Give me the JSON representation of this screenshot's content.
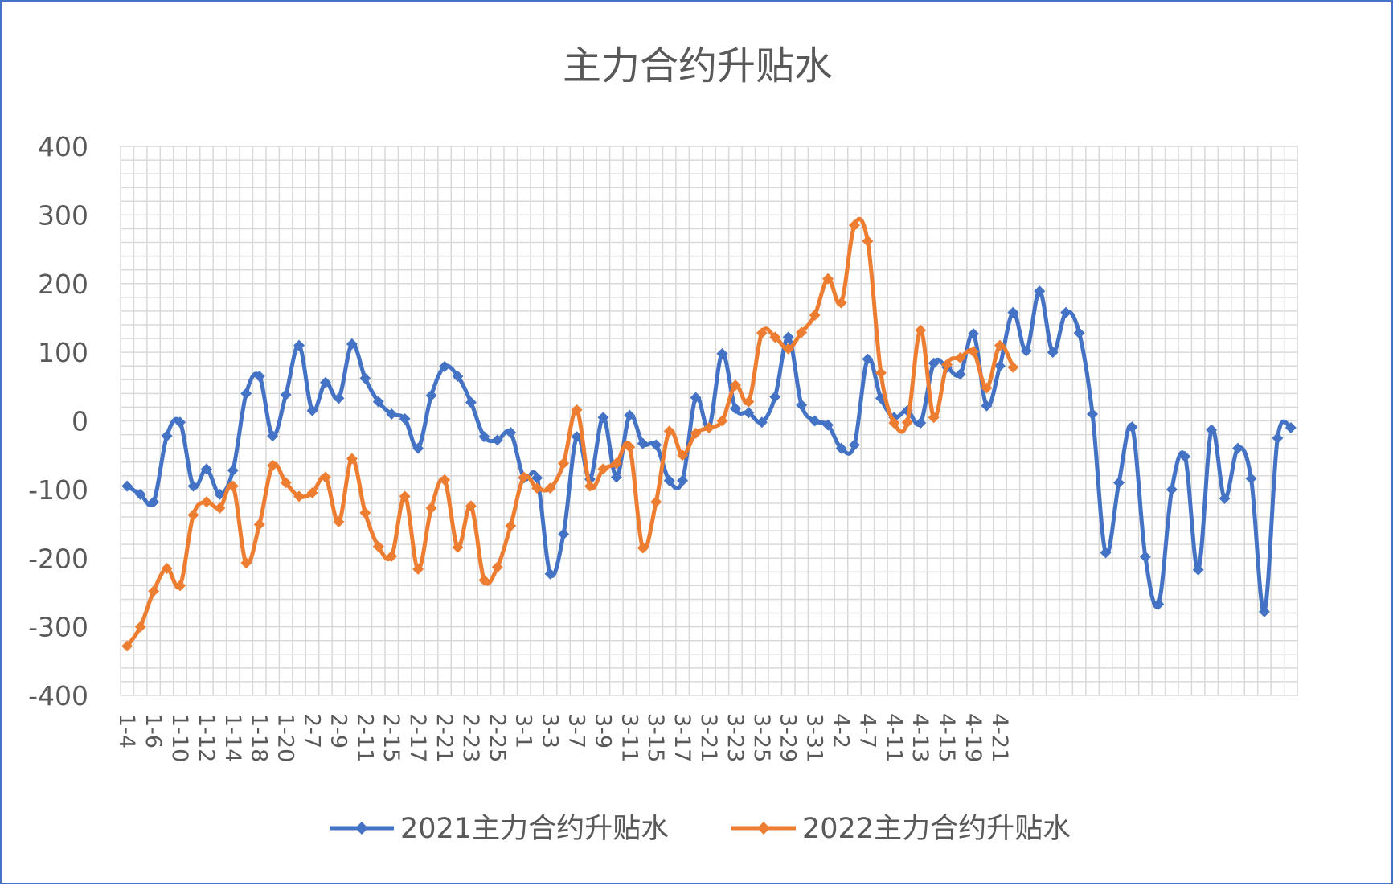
{
  "chart_data": {
    "type": "line",
    "title": "主力合约升贴水",
    "xlabel": "",
    "ylabel": "",
    "ylim": [
      -400,
      400
    ],
    "yticks": [
      400,
      300,
      200,
      100,
      0,
      -100,
      -200,
      -300,
      -400
    ],
    "grid": true,
    "legend_position": "bottom",
    "x_tick_labels": [
      "1-4",
      "1-6",
      "1-10",
      "1-12",
      "1-14",
      "1-18",
      "1-20",
      "2-7",
      "2-9",
      "2-11",
      "2-15",
      "2-17",
      "2-21",
      "2-23",
      "2-25",
      "3-1",
      "3-3",
      "3-7",
      "3-9",
      "3-11",
      "3-15",
      "3-17",
      "3-21",
      "3-23",
      "3-25",
      "3-29",
      "3-31",
      "4-2",
      "4-7",
      "4-11",
      "4-13",
      "4-15",
      "4-19",
      "4-21"
    ],
    "series": [
      {
        "name": "2021主力合约升贴水",
        "color": "#4472c4",
        "values": [
          -95,
          -107,
          -118,
          -22,
          -2,
          -95,
          -70,
          -107,
          -72,
          40,
          65,
          -22,
          38,
          110,
          15,
          56,
          33,
          112,
          62,
          28,
          10,
          3,
          -40,
          37,
          79,
          65,
          27,
          -23,
          -28,
          -17,
          -83,
          -83,
          -223,
          -165,
          -23,
          -85,
          5,
          -82,
          8,
          -33,
          -35,
          -87,
          -87,
          34,
          -10,
          98,
          18,
          12,
          -2,
          35,
          122,
          23,
          0,
          -6,
          -40,
          -35,
          90,
          33,
          5,
          15,
          -3,
          84,
          78,
          68,
          127,
          22,
          80,
          158,
          102,
          189,
          100,
          158,
          128,
          10,
          -192,
          -90,
          -9,
          -198,
          -267,
          -100,
          -52,
          -217,
          -13,
          -113,
          -40,
          -84,
          -278,
          -25,
          -10
        ]
      },
      {
        "name": "2022主力合约升贴水",
        "color": "#ed7d31",
        "values": [
          -328,
          -300,
          -248,
          -215,
          -240,
          -137,
          -118,
          -127,
          -95,
          -207,
          -151,
          -65,
          -90,
          -110,
          -105,
          -82,
          -147,
          -55,
          -134,
          -183,
          -197,
          -110,
          -216,
          -127,
          -86,
          -184,
          -124,
          -232,
          -213,
          -153,
          -82,
          -98,
          -98,
          -62,
          16,
          -95,
          -70,
          -62,
          -38,
          -185,
          -118,
          -15,
          -50,
          -18,
          -10,
          0,
          52,
          28,
          128,
          122,
          105,
          129,
          154,
          207,
          172,
          285,
          262,
          70,
          -3,
          -2,
          132,
          5,
          82,
          92,
          101,
          48,
          110,
          78
        ]
      }
    ]
  }
}
